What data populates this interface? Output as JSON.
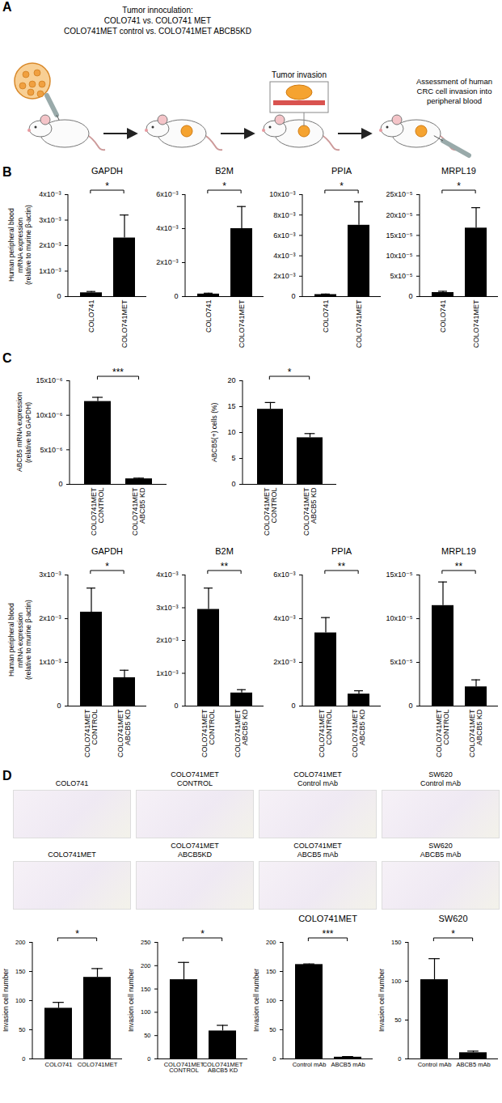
{
  "panel_labels": [
    "A",
    "B",
    "C",
    "D"
  ],
  "diagram": {
    "inoculation": [
      "Tumor innoculation:",
      "COLO741 vs. COLO741 MET",
      "COLO741MET control vs. COLO741MET ABCB5KD"
    ],
    "invasion": "Tumor invasion",
    "assessment": [
      "Assessment of human",
      "CRC cell invasion into",
      "peripheral blood"
    ]
  },
  "micrographs": [
    {
      "caption": "COLO741"
    },
    {
      "caption": "COLO741MET\nCONTROL"
    },
    {
      "caption": "COLO741MET\nControl mAb"
    },
    {
      "caption": "SW620\nControl mAb"
    },
    {
      "caption": "COLO741MET"
    },
    {
      "caption": "COLO741MET\nABCB5KD"
    },
    {
      "caption": "COLO741MET\nABCB5 mAb"
    },
    {
      "caption": "SW620\nABCB5 mAb"
    }
  ],
  "chart_data": [
    {
      "type": "bar",
      "title": "GAPDH",
      "ylabel": "Human peripheral blood\nmRNA expression\n(relative to murine β-actin)",
      "categories": [
        "COLO741",
        "COLO741MET"
      ],
      "values": [
        0.00015,
        0.0023
      ],
      "errors": [
        5e-05,
        0.0009
      ],
      "color": "#000000",
      "ylim": [
        0,
        0.004
      ],
      "yticks": [
        0,
        {
          "value": 0.001,
          "label": "1x10⁻³"
        },
        {
          "value": 0.002,
          "label": "2x10⁻³"
        },
        {
          "value": 0.003,
          "label": "3x10⁻³"
        },
        {
          "value": 0.004,
          "label": "4x10⁻³"
        }
      ],
      "significance": "*"
    },
    {
      "type": "bar",
      "title": "B2M",
      "categories": [
        "COLO741",
        "COLO741MET"
      ],
      "values": [
        0.00015,
        0.004
      ],
      "errors": [
        5e-05,
        0.0013
      ],
      "color": "#000000",
      "ylim": [
        0,
        0.006
      ],
      "yticks": [
        0,
        {
          "value": 0.002,
          "label": "2x10⁻³"
        },
        {
          "value": 0.004,
          "label": "4x10⁻³"
        },
        {
          "value": 0.006,
          "label": "6x10⁻³"
        }
      ],
      "significance": "*"
    },
    {
      "type": "bar",
      "title": "PPIA",
      "categories": [
        "COLO741",
        "COLO741MET"
      ],
      "values": [
        0.0002,
        0.007
      ],
      "errors": [
        5e-05,
        0.0023
      ],
      "color": "#000000",
      "ylim": [
        0,
        0.01
      ],
      "yticks": [
        0,
        {
          "value": 0.002,
          "label": "2x10⁻³"
        },
        {
          "value": 0.004,
          "label": "4x10⁻³"
        },
        {
          "value": 0.006,
          "label": "6x10⁻³"
        },
        {
          "value": 0.008,
          "label": "8x10⁻³"
        },
        {
          "value": 0.01,
          "label": "10x10⁻³"
        }
      ],
      "significance": "*"
    },
    {
      "type": "bar",
      "title": "MRPL19",
      "categories": [
        "COLO741",
        "COLO741MET"
      ],
      "values": [
        1e-05,
        0.000168
      ],
      "errors": [
        3e-06,
        5e-05
      ],
      "color": "#000000",
      "ylim": [
        0,
        0.00025
      ],
      "yticks": [
        0,
        {
          "value": 5e-05,
          "label": "5x10⁻⁵"
        },
        {
          "value": 0.0001,
          "label": "10x10⁻⁵"
        },
        {
          "value": 0.00015,
          "label": "15x10⁻⁵"
        },
        {
          "value": 0.0002,
          "label": "20x10⁻⁵"
        },
        {
          "value": 0.00025,
          "label": "25x10⁻⁵"
        }
      ],
      "significance": "*"
    },
    {
      "type": "bar",
      "ylabel": "ABCB5 mRNA expression\n(relative to GAPDH)",
      "categories": [
        "COLO741MET\nCONTROL",
        "COLO741MET\nABCB5 KD"
      ],
      "values": [
        1.2e-05,
        8e-07
      ],
      "errors": [
        6e-07,
        1e-07
      ],
      "color": "#000000",
      "ylim": [
        0,
        1.5e-05
      ],
      "yticks": [
        0,
        {
          "value": 5e-06,
          "label": "5x10⁻⁶"
        },
        {
          "value": 1e-05,
          "label": "10x10⁻⁶"
        },
        {
          "value": 1.5e-05,
          "label": "15x10⁻⁶"
        }
      ],
      "significance": "***"
    },
    {
      "type": "bar",
      "ylabel": "ABCB5(+) cells (%)",
      "categories": [
        "COLO741MET\nCONTROL",
        "COLO741MET\nABCB5 KD"
      ],
      "values": [
        14.5,
        9
      ],
      "errors": [
        1.3,
        0.8
      ],
      "color": "#000000",
      "ylim": [
        0,
        20
      ],
      "yticks": [
        0,
        5,
        10,
        15,
        20
      ],
      "significance": "*"
    },
    {
      "type": "bar",
      "title": "GAPDH",
      "ylabel": "Human peripheral blood\nmRNA expression\n(relative to murine β-actin)",
      "categories": [
        "COLO741MET\nCONTROL",
        "COLO741MET\nABCB5 KD"
      ],
      "values": [
        0.00215,
        0.00065
      ],
      "errors": [
        0.00055,
        0.00017
      ],
      "color": "#000000",
      "ylim": [
        0,
        0.003
      ],
      "yticks": [
        0,
        {
          "value": 0.001,
          "label": "1x10⁻³"
        },
        {
          "value": 0.002,
          "label": "2x10⁻³"
        },
        {
          "value": 0.003,
          "label": "3x10⁻³"
        }
      ],
      "significance": "*"
    },
    {
      "type": "bar",
      "title": "B2M",
      "categories": [
        "COLO741MET\nCONTROL",
        "COLO741MET\nABCB5 KD"
      ],
      "values": [
        0.00295,
        0.0004
      ],
      "errors": [
        0.00065,
        0.0001
      ],
      "color": "#000000",
      "ylim": [
        0,
        0.004
      ],
      "yticks": [
        0,
        {
          "value": 0.001,
          "label": "1x10⁻³"
        },
        {
          "value": 0.002,
          "label": "2x10⁻³"
        },
        {
          "value": 0.003,
          "label": "3x10⁻³"
        },
        {
          "value": 0.004,
          "label": "4x10⁻³"
        }
      ],
      "significance": "**"
    },
    {
      "type": "bar",
      "title": "PPIA",
      "categories": [
        "COLO741MET\nCONTROL",
        "COLO741MET\nABCB5 KD"
      ],
      "values": [
        0.00335,
        0.00055
      ],
      "errors": [
        0.0007,
        0.00015
      ],
      "color": "#000000",
      "ylim": [
        0,
        0.006
      ],
      "yticks": [
        0,
        {
          "value": 0.002,
          "label": "2x10⁻³"
        },
        {
          "value": 0.004,
          "label": "4x10⁻³"
        },
        {
          "value": 0.006,
          "label": "6x10⁻³"
        }
      ],
      "significance": "**"
    },
    {
      "type": "bar",
      "title": "MRPL19",
      "categories": [
        "COLO741MET\nCONTROL",
        "COLO741MET\nABCB5 KD"
      ],
      "values": [
        0.000115,
        2.2e-05
      ],
      "errors": [
        2.7e-05,
        8e-06
      ],
      "color": "#000000",
      "ylim": [
        0,
        0.00015
      ],
      "yticks": [
        0,
        {
          "value": 5e-05,
          "label": "5x10⁻⁵"
        },
        {
          "value": 0.0001,
          "label": "10x10⁻⁵"
        },
        {
          "value": 0.00015,
          "label": "15x10⁻⁵"
        }
      ],
      "significance": "**"
    },
    {
      "type": "bar",
      "ylabel": "Invasion cell number",
      "categories": [
        "COLO741",
        "COLO741MET"
      ],
      "values": [
        87,
        140
      ],
      "errors": [
        10,
        15
      ],
      "color": "#000000",
      "ylim": [
        0,
        200
      ],
      "yticks": [
        0,
        50,
        100,
        150,
        200
      ],
      "significance": "*"
    },
    {
      "type": "bar",
      "ylabel": "Invasion cell number",
      "categories": [
        "COLO741MET\nCONTROL",
        "COLO741MET\nABCB5 KD"
      ],
      "values": [
        170,
        60
      ],
      "errors": [
        37,
        12
      ],
      "color": "#000000",
      "ylim": [
        0,
        250
      ],
      "yticks": [
        0,
        50,
        100,
        150,
        200,
        250
      ],
      "significance": "*"
    },
    {
      "type": "bar",
      "title": "COLO741MET",
      "ylabel": "Invasion cell number",
      "categories": [
        "Control mAb",
        "ABCB5 mAb"
      ],
      "values": [
        162,
        3
      ],
      "errors": [
        1,
        1
      ],
      "color": "#000000",
      "ylim": [
        0,
        200
      ],
      "yticks": [
        0,
        50,
        100,
        150,
        200
      ],
      "significance": "***"
    },
    {
      "type": "bar",
      "title": "SW620",
      "ylabel": "Invasion cell number",
      "categories": [
        "Control mAb",
        "ABCB5 mAb"
      ],
      "values": [
        102,
        8
      ],
      "errors": [
        27,
        2
      ],
      "color": "#000000",
      "ylim": [
        0,
        150
      ],
      "yticks": [
        0,
        50,
        100,
        150
      ],
      "significance": "*"
    }
  ]
}
